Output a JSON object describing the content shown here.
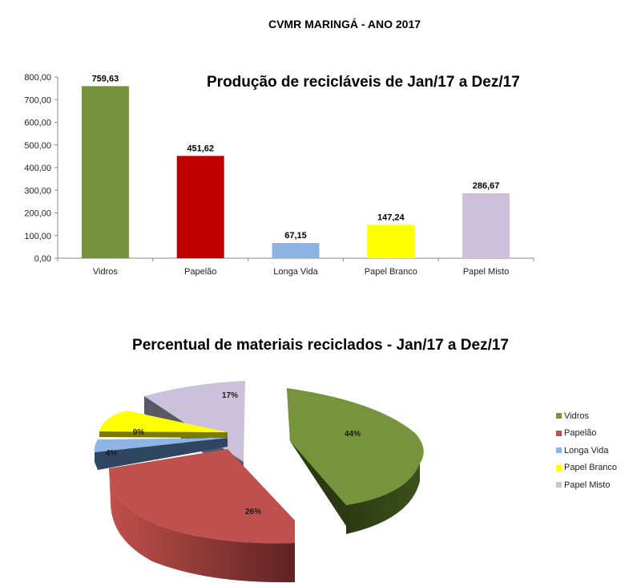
{
  "page": {
    "title": "CVMR MARINGÁ - ANO 2017"
  },
  "chart_data": [
    {
      "type": "bar",
      "title": "Produção de recicláveis de Jan/17 a Dez/17",
      "categories": [
        "Vidros",
        "Papelão",
        "Longa Vida",
        "Papel Branco",
        "Papel Misto"
      ],
      "values": [
        759.63,
        451.62,
        67.15,
        147.24,
        286.67
      ],
      "value_labels": [
        "759,63",
        "451,62",
        "67,15",
        "147,24",
        "286,67"
      ],
      "colors": [
        "#76923c",
        "#c00000",
        "#8db3e2",
        "#ffff00",
        "#ccc0da"
      ],
      "xlabel": "",
      "ylabel": "",
      "ylim": [
        0,
        800
      ],
      "yticks": [
        "0,00",
        "100,00",
        "200,00",
        "300,00",
        "400,00",
        "500,00",
        "600,00",
        "700,00",
        "800,00"
      ],
      "grid": false,
      "legend": "none"
    },
    {
      "type": "pie",
      "title": "Percentual de materiais reciclados - Jan/17 a Dez/17",
      "categories": [
        "Vidros",
        "Papelão",
        "Longa Vida",
        "Papel Branco",
        "Papel Misto"
      ],
      "values": [
        44,
        26,
        4,
        9,
        17
      ],
      "value_labels": [
        "44%",
        "26%",
        "4%",
        "9%",
        "17%"
      ],
      "colors": [
        "#77933c",
        "#c0504d",
        "#8eb4e3",
        "#ffff00",
        "#ccc1da"
      ],
      "style": "3d-exploded",
      "legend": "right"
    }
  ],
  "legend": {
    "items": [
      {
        "label": "Vidros",
        "color": "#77933c"
      },
      {
        "label": "Papelão",
        "color": "#c0504d"
      },
      {
        "label": "Longa Vida",
        "color": "#8eb4e3"
      },
      {
        "label": "Papel Branco",
        "color": "#ffff00"
      },
      {
        "label": "Papel Misto",
        "color": "#ccc1da"
      }
    ]
  }
}
